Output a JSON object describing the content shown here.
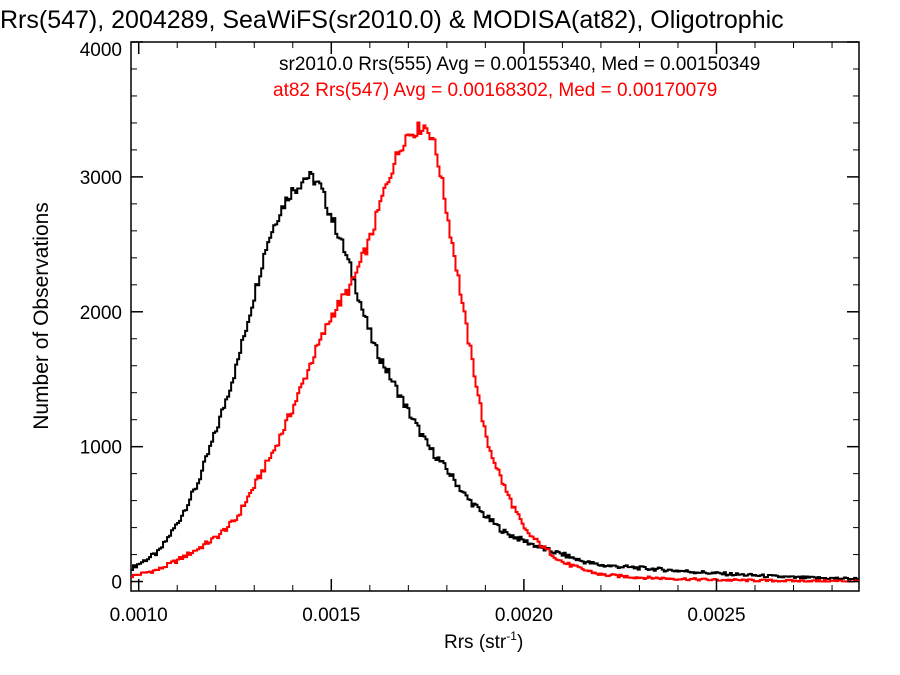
{
  "chart_data": {
    "type": "line",
    "title": "Rrs(547), 2004289, SeaWiFS(sr2010.0) & MODISA(at82), Oligotrophic",
    "xlabel": "Rrs (str",
    "xlabel_sup": "-1",
    "xlabel_end": ")",
    "ylabel": "Number of Observations",
    "xlim": [
      0.00098,
      0.00287
    ],
    "ylim": [
      -70,
      4000
    ],
    "xticks": [
      0.001,
      0.0015,
      0.002,
      0.0025
    ],
    "xtick_labels": [
      "0.0010",
      "0.0015",
      "0.0020",
      "0.0025"
    ],
    "yticks": [
      0,
      1000,
      2000,
      3000,
      4000
    ],
    "ytick_labels": [
      "0",
      "1000",
      "2000",
      "3000",
      "4000"
    ],
    "grid": false,
    "legend": [
      {
        "text": "sr2010.0 Rrs(555) Avg = 0.00155340, Med = 0.00150349",
        "color": "#000000"
      },
      {
        "text": "at82 Rrs(547) Avg = 0.00168302, Med = 0.00170079",
        "color": "#ff0000"
      }
    ],
    "series": [
      {
        "color": "#000000",
        "x": [
          0.00098,
          0.00105,
          0.0011,
          0.00115,
          0.0012,
          0.00125,
          0.0013,
          0.00133,
          0.00136,
          0.00139,
          0.00141,
          0.00143,
          0.00145,
          0.00147,
          0.00149,
          0.00152,
          0.00155,
          0.00158,
          0.00161,
          0.00165,
          0.0017,
          0.00175,
          0.0018,
          0.00185,
          0.0019,
          0.00195,
          0.002,
          0.00205,
          0.0021,
          0.00215,
          0.0022,
          0.0023,
          0.0024,
          0.0025,
          0.0026,
          0.0027,
          0.00287
        ],
        "y": [
          100,
          220,
          440,
          720,
          1130,
          1580,
          2150,
          2500,
          2720,
          2880,
          2930,
          3000,
          2990,
          2920,
          2760,
          2550,
          2300,
          2000,
          1740,
          1520,
          1250,
          1000,
          820,
          620,
          480,
          360,
          300,
          240,
          200,
          150,
          120,
          100,
          80,
          60,
          45,
          30,
          20
        ]
      },
      {
        "color": "#ff0000",
        "x": [
          0.00098,
          0.00105,
          0.0011,
          0.00115,
          0.0012,
          0.00125,
          0.0013,
          0.00135,
          0.0014,
          0.00145,
          0.0015,
          0.00155,
          0.0016,
          0.00163,
          0.00166,
          0.00169,
          0.00172,
          0.00174,
          0.00176,
          0.00178,
          0.0018,
          0.00182,
          0.00185,
          0.00188,
          0.0019,
          0.00195,
          0.002,
          0.00205,
          0.0021,
          0.00215,
          0.0022,
          0.0023,
          0.0024,
          0.0025,
          0.0026,
          0.0027,
          0.00287
        ],
        "y": [
          40,
          90,
          160,
          240,
          330,
          460,
          720,
          980,
          1300,
          1660,
          1980,
          2200,
          2550,
          2850,
          3100,
          3300,
          3350,
          3380,
          3300,
          3050,
          2700,
          2380,
          1850,
          1380,
          1050,
          680,
          380,
          250,
          140,
          90,
          50,
          30,
          20,
          12,
          8,
          5,
          3
        ]
      }
    ]
  }
}
